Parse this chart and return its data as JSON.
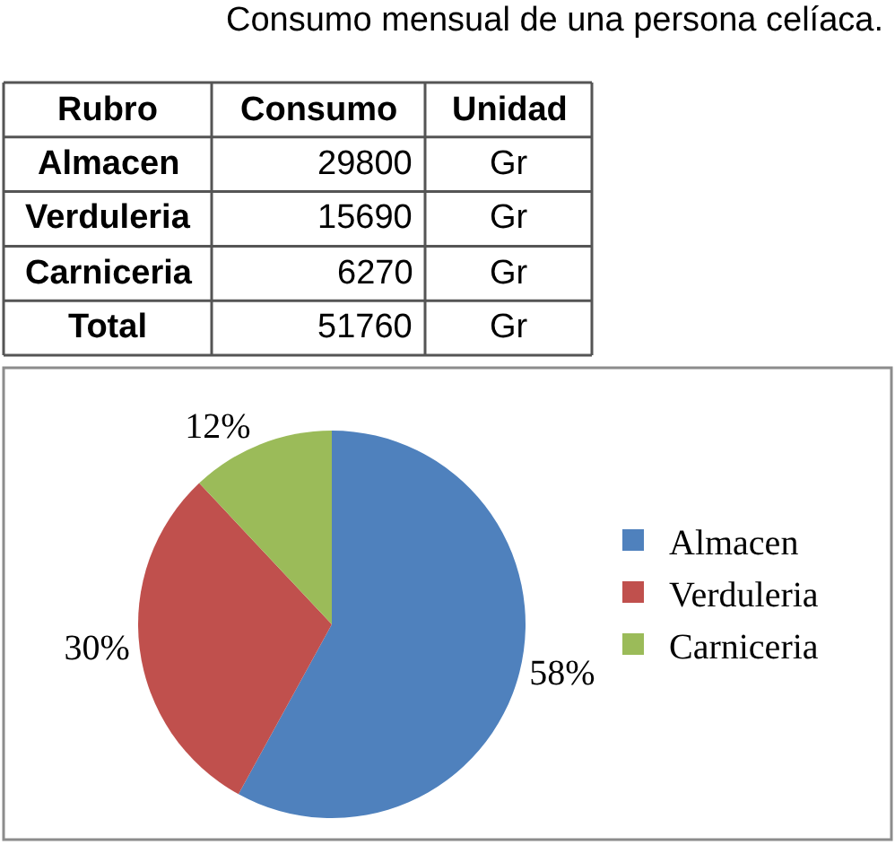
{
  "chart_data": [
    {
      "type": "other",
      "title": "Consumo mensual de una persona celíaca.",
      "ylabel": "Rubro",
      "categories": [
        "Consumo",
        "Unidad"
      ],
      "y_categories": [
        "Almacen",
        "Verduleria",
        "Carniceria",
        "Total"
      ],
      "cell_labels": [
        [
          "29800",
          "Gr"
        ],
        [
          "15690",
          "Gr"
        ],
        [
          "6270",
          "Gr"
        ],
        [
          "51760",
          "Gr"
        ]
      ]
    },
    {
      "type": "pie",
      "categories": [
        "Almacen",
        "Verduleria",
        "Carniceria"
      ],
      "values": [
        58,
        30,
        12
      ],
      "colors": [
        "#4f81bd",
        "#c0504d",
        "#9bbb59"
      ],
      "value_labels": [
        "58%",
        "30%",
        "12%"
      ],
      "legend": "right"
    }
  ]
}
